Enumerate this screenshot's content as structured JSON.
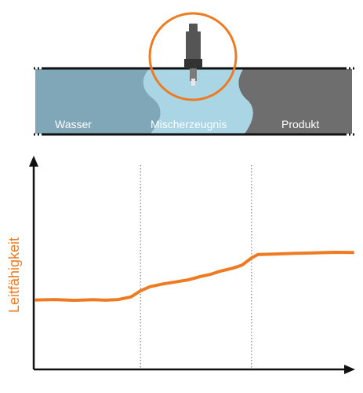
{
  "pipe": {
    "zones": [
      {
        "label": "Wasser",
        "color": "#7fa7b8"
      },
      {
        "label": "Mischerzeugnis",
        "color": "#a9d5e5"
      },
      {
        "label": "Produkt",
        "color": "#6e6e6e"
      }
    ],
    "wall_color": "#111111"
  },
  "sensor": {
    "icon": "conductivity-sensor-icon",
    "ring_color": "#ee7a22",
    "body_color": "#555555"
  },
  "chart": {
    "y_label": "Leitfähigkeit",
    "y_label_color": "#ee7a22",
    "line_color": "#ee7a22",
    "axis_color": "#111111",
    "divider_color": "#999999"
  },
  "chart_data": {
    "type": "line",
    "title": "",
    "xlabel": "",
    "ylabel": "Leitfähigkeit",
    "xlim": [
      0,
      100
    ],
    "ylim": [
      0,
      100
    ],
    "grid": false,
    "dividers_x": [
      33,
      68
    ],
    "series": [
      {
        "values": [
          [
            0,
            34
          ],
          [
            6,
            34.2
          ],
          [
            12,
            33.8
          ],
          [
            18,
            34.1
          ],
          [
            22,
            33.9
          ],
          [
            26,
            34.2
          ],
          [
            30,
            35.5
          ],
          [
            33,
            38.5
          ],
          [
            36,
            40.5
          ],
          [
            40,
            41.8
          ],
          [
            44,
            42.8
          ],
          [
            48,
            43.8
          ],
          [
            52,
            45.5
          ],
          [
            55,
            46.5
          ],
          [
            58,
            48
          ],
          [
            62,
            49.5
          ],
          [
            65,
            51
          ],
          [
            68,
            54.5
          ],
          [
            70,
            56.2
          ],
          [
            76,
            56.5
          ],
          [
            82,
            56.8
          ],
          [
            88,
            57
          ],
          [
            94,
            57.3
          ],
          [
            100,
            57.2
          ]
        ]
      }
    ]
  }
}
